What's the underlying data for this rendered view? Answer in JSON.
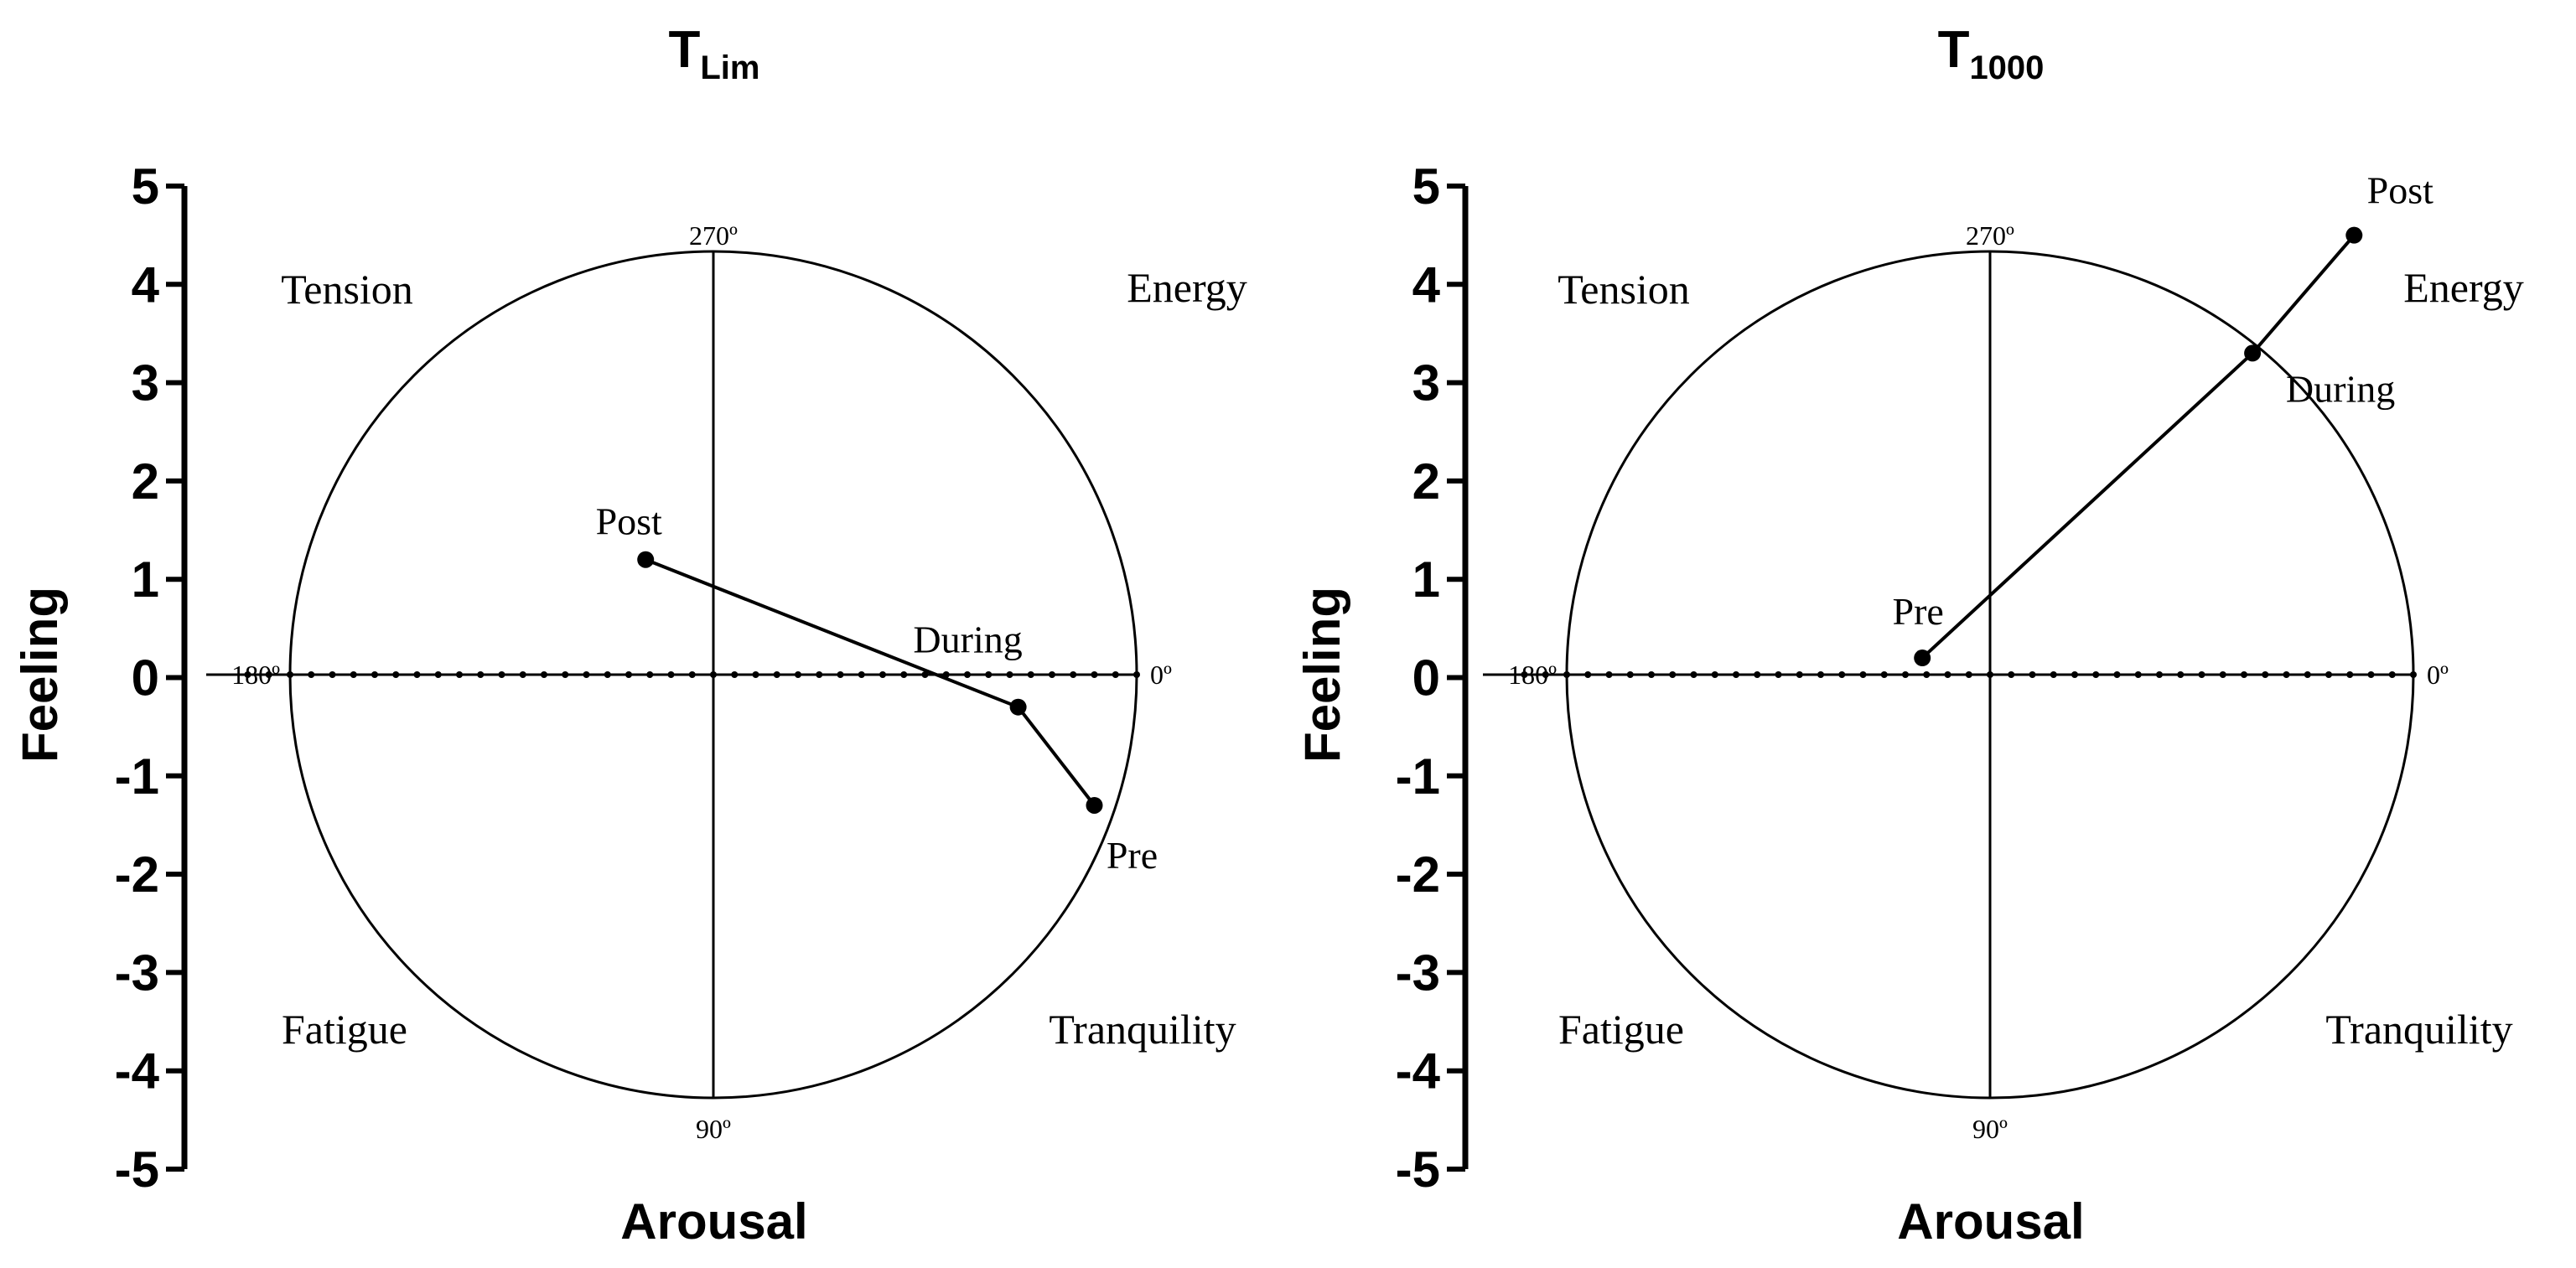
{
  "chart_data": [
    {
      "type": "scatter",
      "title_main": "T",
      "title_sub": "Lim",
      "xlabel": "Arousal",
      "ylabel": "Feeling",
      "ylim": [
        -5,
        5
      ],
      "xlim": [
        -5,
        5
      ],
      "yticks": [
        "5",
        "4",
        "3",
        "2",
        "1",
        "0",
        "-1",
        "-2",
        "-3",
        "-4",
        "-5"
      ],
      "degree_labels": {
        "top": "270º",
        "bottom": "90º",
        "left": "180º",
        "right": "0º"
      },
      "quadrants": {
        "top_left": "Tension",
        "top_right": "Energy",
        "bottom_left": "Fatigue",
        "bottom_right": "Tranquility"
      },
      "connected": true,
      "points": [
        {
          "label": "Pre",
          "x": 4.5,
          "y": -1.3
        },
        {
          "label": "During",
          "x": 3.6,
          "y": -0.3
        },
        {
          "label": "Post",
          "x": -0.8,
          "y": 1.2
        }
      ]
    },
    {
      "type": "scatter",
      "title_main": "T",
      "title_sub": "1000",
      "xlabel": "Arousal",
      "ylabel": "Feeling",
      "ylim": [
        -5,
        5
      ],
      "xlim": [
        -5,
        5
      ],
      "yticks": [
        "5",
        "4",
        "3",
        "2",
        "1",
        "0",
        "-1",
        "-2",
        "-3",
        "-4",
        "-5"
      ],
      "degree_labels": {
        "top": "270º",
        "bottom": "90º",
        "left": "180º",
        "right": "0º"
      },
      "quadrants": {
        "top_left": "Tension",
        "top_right": "Energy",
        "bottom_left": "Fatigue",
        "bottom_right": "Tranquility"
      },
      "connected": true,
      "points": [
        {
          "label": "Pre",
          "x": -0.8,
          "y": 0.2
        },
        {
          "label": "During",
          "x": 3.1,
          "y": 3.3
        },
        {
          "label": "Post",
          "x": 4.3,
          "y": 4.5
        }
      ]
    }
  ]
}
